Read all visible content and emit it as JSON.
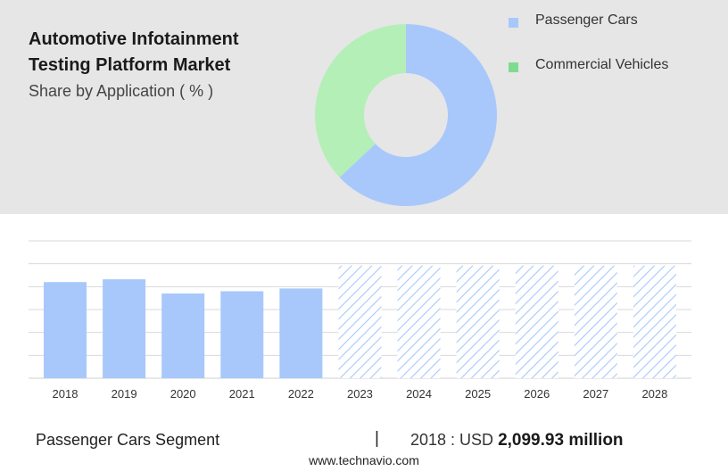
{
  "header": {
    "title_line1": "Automotive Infotainment",
    "title_line2": "Testing Platform Market",
    "subtitle": "Share by Application ( % )"
  },
  "legend": [
    {
      "label": "Passenger Cars",
      "color": "#a8c8fb"
    },
    {
      "label": "Commercial Vehicles",
      "color": "#7fdc8f"
    }
  ],
  "footer": {
    "segment": "Passenger Cars Segment",
    "separator": "|",
    "year_label": "2018 : USD",
    "value": "2,099.93 million",
    "source": "www.technavio.com"
  },
  "chart_data": [
    {
      "type": "pie",
      "variant": "donut",
      "categories": [
        "Passenger Cars",
        "Commercial Vehicles"
      ],
      "values": [
        63,
        37
      ],
      "colors": [
        "#a8c8fb",
        "#b4efb8"
      ]
    },
    {
      "type": "bar",
      "categories": [
        "2018",
        "2019",
        "2020",
        "2021",
        "2022",
        "2023",
        "2024",
        "2025",
        "2026",
        "2027",
        "2028"
      ],
      "values": [
        2099.93,
        2160,
        1850,
        1900,
        1960,
        null,
        null,
        null,
        null,
        null,
        null
      ],
      "forecast": [
        false,
        false,
        false,
        false,
        false,
        true,
        true,
        true,
        true,
        true,
        true
      ],
      "bar_color": "#a8c8fb",
      "ylim": [
        0,
        3000
      ],
      "grid": true
    }
  ]
}
